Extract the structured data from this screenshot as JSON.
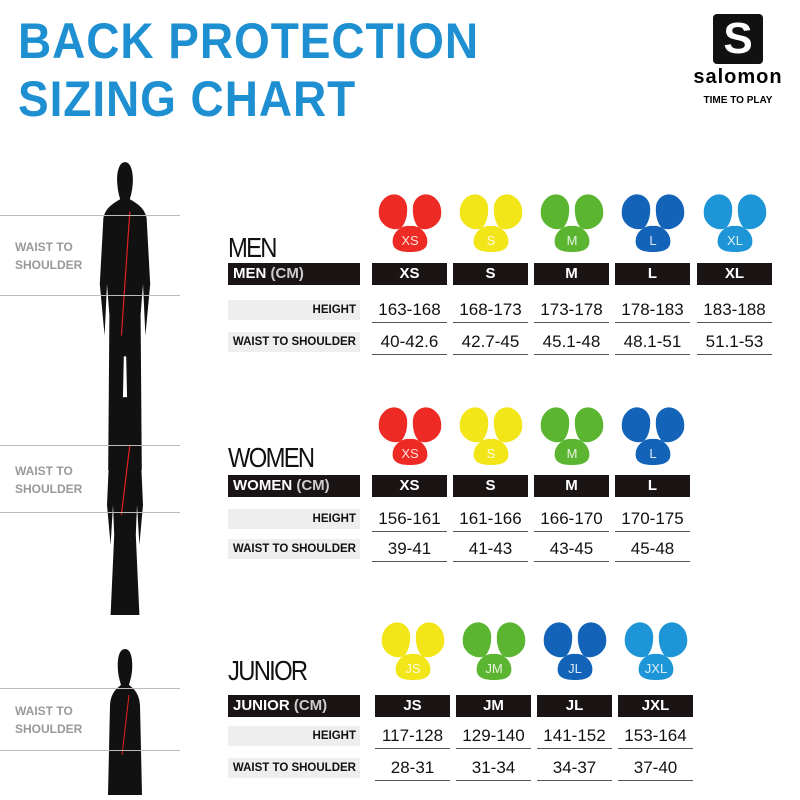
{
  "title": {
    "line1": "BACK PROTECTION",
    "line2": "SIZING CHART"
  },
  "logo": {
    "mark": "S",
    "brand": "salomon",
    "tagline": "TIME TO PLAY"
  },
  "sections": [
    {
      "key": "men",
      "label": "MEN",
      "header": "MEN",
      "unit": "(CM)",
      "side_label": "WAIST TO SHOULDER",
      "row_labels": [
        "HEIGHT",
        "WAIST TO SHOULDER"
      ],
      "sizes": [
        {
          "size": "XS",
          "pad": "XS",
          "color": "#ee2a24",
          "height": "163-168",
          "waist": "40-42.6"
        },
        {
          "size": "S",
          "pad": "S",
          "color": "#f2e619",
          "height": "168-173",
          "waist": "42.7-45"
        },
        {
          "size": "M",
          "pad": "M",
          "color": "#5cb531",
          "height": "173-178",
          "waist": "45.1-48"
        },
        {
          "size": "L",
          "pad": "L",
          "color": "#1364b8",
          "height": "178-183",
          "waist": "48.1-51"
        },
        {
          "size": "XL",
          "pad": "XL",
          "color": "#1d95d6",
          "height": "183-188",
          "waist": "51.1-53"
        }
      ]
    },
    {
      "key": "women",
      "label": "WOMEN",
      "header": "WOMEN",
      "unit": "(CM)",
      "side_label": "WAIST TO SHOULDER",
      "row_labels": [
        "HEIGHT",
        "WAIST TO SHOULDER"
      ],
      "sizes": [
        {
          "size": "XS",
          "pad": "XS",
          "color": "#ee2a24",
          "height": "156-161",
          "waist": "39-41"
        },
        {
          "size": "S",
          "pad": "S",
          "color": "#f2e619",
          "height": "161-166",
          "waist": "41-43"
        },
        {
          "size": "M",
          "pad": "M",
          "color": "#5cb531",
          "height": "166-170",
          "waist": "43-45"
        },
        {
          "size": "L",
          "pad": "L",
          "color": "#1364b8",
          "height": "170-175",
          "waist": "45-48"
        }
      ]
    },
    {
      "key": "junior",
      "label": "JUNIOR",
      "header": "JUNIOR",
      "unit": "(CM)",
      "side_label": "WAIST TO SHOULDER",
      "row_labels": [
        "HEIGHT",
        "WAIST TO SHOULDER"
      ],
      "sizes": [
        {
          "size": "JS",
          "pad": "JS",
          "color": "#f2e619",
          "height": "117-128",
          "waist": "28-31"
        },
        {
          "size": "JM",
          "pad": "JM",
          "color": "#5cb531",
          "height": "129-140",
          "waist": "31-34"
        },
        {
          "size": "JL",
          "pad": "JL",
          "color": "#1364b8",
          "height": "141-152",
          "waist": "34-37"
        },
        {
          "size": "JXL",
          "pad": "JXL",
          "color": "#1d95d6",
          "height": "153-164",
          "waist": "37-40"
        }
      ]
    }
  ]
}
